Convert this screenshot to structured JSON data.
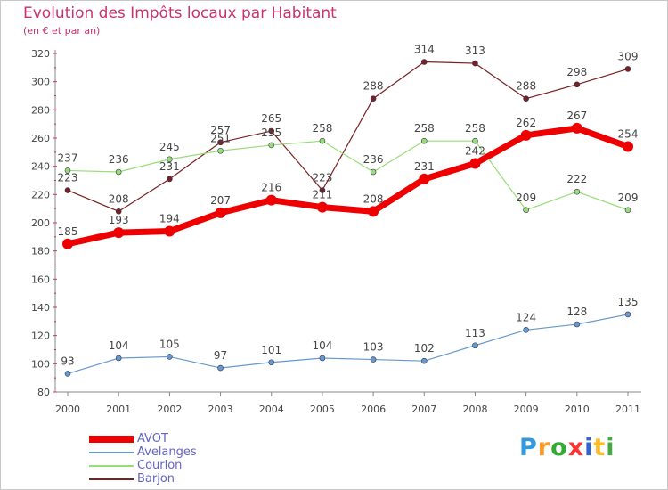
{
  "title": "Evolution des Impôts locaux par Habitant",
  "subtitle": "(en € et par an)",
  "logo": {
    "letters": [
      "P",
      "r",
      "o",
      "x",
      "i",
      "t",
      "i"
    ],
    "colors": [
      "#3399dd",
      "#ff9922",
      "#33aa33",
      "#ff3333",
      "#3366cc",
      "#ffbb22",
      "#44aa44"
    ]
  },
  "chart_data": {
    "type": "line",
    "categories": [
      "2000",
      "2001",
      "2002",
      "2003",
      "2004",
      "2005",
      "2006",
      "2007",
      "2008",
      "2009",
      "2010",
      "2011"
    ],
    "ylim": [
      80,
      320
    ],
    "yticks": [
      80,
      100,
      120,
      140,
      160,
      180,
      200,
      220,
      240,
      260,
      280,
      300,
      320
    ],
    "grid": false,
    "legend_position": "bottom-left",
    "series": [
      {
        "name": "AVOT",
        "color": "#ee0000",
        "values": [
          185,
          193,
          194,
          207,
          216,
          211,
          208,
          231,
          242,
          262,
          267,
          254
        ]
      },
      {
        "name": "Avelanges",
        "color": "#6699cc",
        "values": [
          93,
          104,
          105,
          97,
          101,
          104,
          103,
          102,
          113,
          124,
          128,
          135
        ]
      },
      {
        "name": "Courlon",
        "color": "#99dd77",
        "values": [
          237,
          236,
          245,
          251,
          255,
          258,
          236,
          258,
          258,
          209,
          222,
          209
        ]
      },
      {
        "name": "Barjon",
        "color": "#7a2020",
        "values": [
          223,
          208,
          231,
          257,
          265,
          223,
          288,
          314,
          313,
          288,
          298,
          309
        ]
      }
    ]
  }
}
